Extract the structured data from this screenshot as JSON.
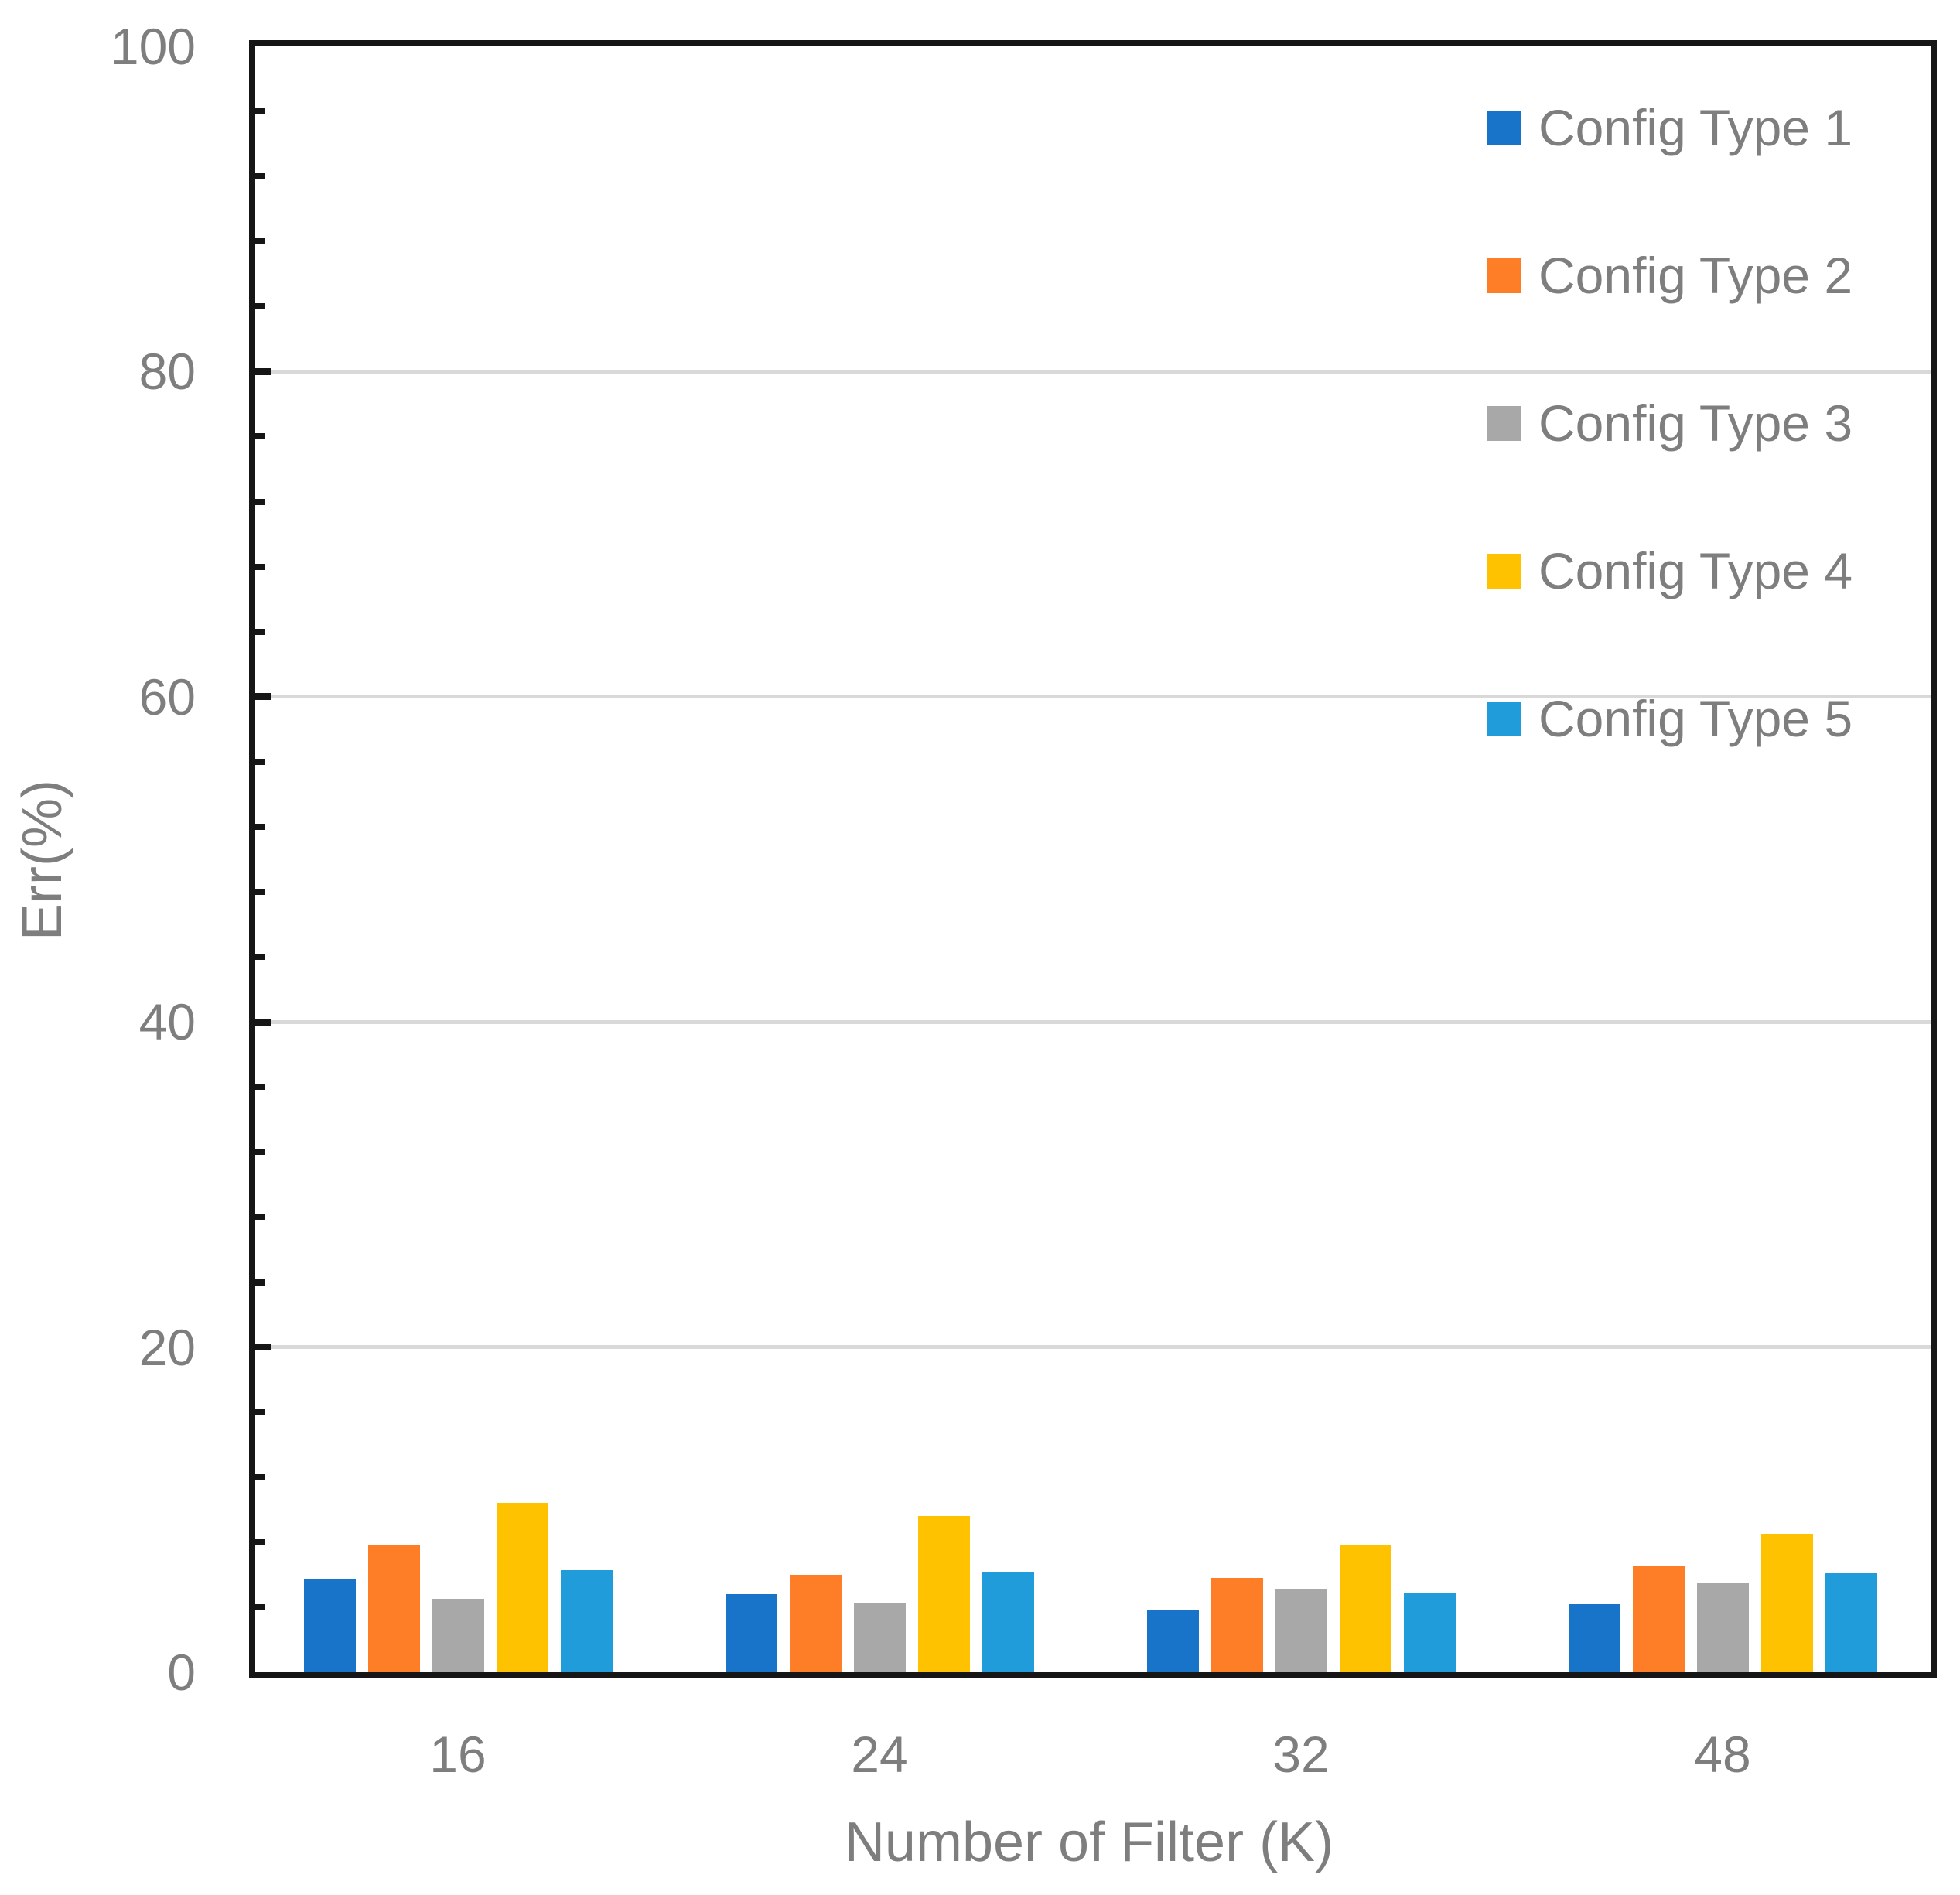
{
  "chart_data": {
    "type": "bar",
    "title": "",
    "categories": [
      "16",
      "24",
      "32",
      "48"
    ],
    "series": [
      {
        "name": "Config Type 1",
        "color": "#1874C8",
        "values": [
          5.7,
          4.8,
          3.8,
          4.2
        ]
      },
      {
        "name": "Config Type 2",
        "color": "#FD7E27",
        "values": [
          7.8,
          6.0,
          5.8,
          6.5
        ]
      },
      {
        "name": "Config Type 3",
        "color": "#A8A8A8",
        "values": [
          4.5,
          4.3,
          5.1,
          5.5
        ]
      },
      {
        "name": "Config Type 4",
        "color": "#FFC200",
        "values": [
          10.4,
          9.6,
          7.8,
          8.5
        ]
      },
      {
        "name": "Config Type 5",
        "color": "#1F9CD9",
        "values": [
          6.3,
          6.2,
          4.9,
          6.1
        ]
      }
    ],
    "xlabel": "Number of Filter (K)",
    "ylabel": "Err(%)",
    "ylim": [
      0,
      100
    ],
    "y_major_ticks": [
      0,
      20,
      40,
      60,
      80,
      100
    ],
    "y_minor_unit": 4,
    "grid": true,
    "legend_position": "top-right",
    "style_colors": {
      "axis": "#161616",
      "gridline": "#D9D9D9",
      "text": "#7E7E7E",
      "background": "#FFFFFF"
    }
  }
}
